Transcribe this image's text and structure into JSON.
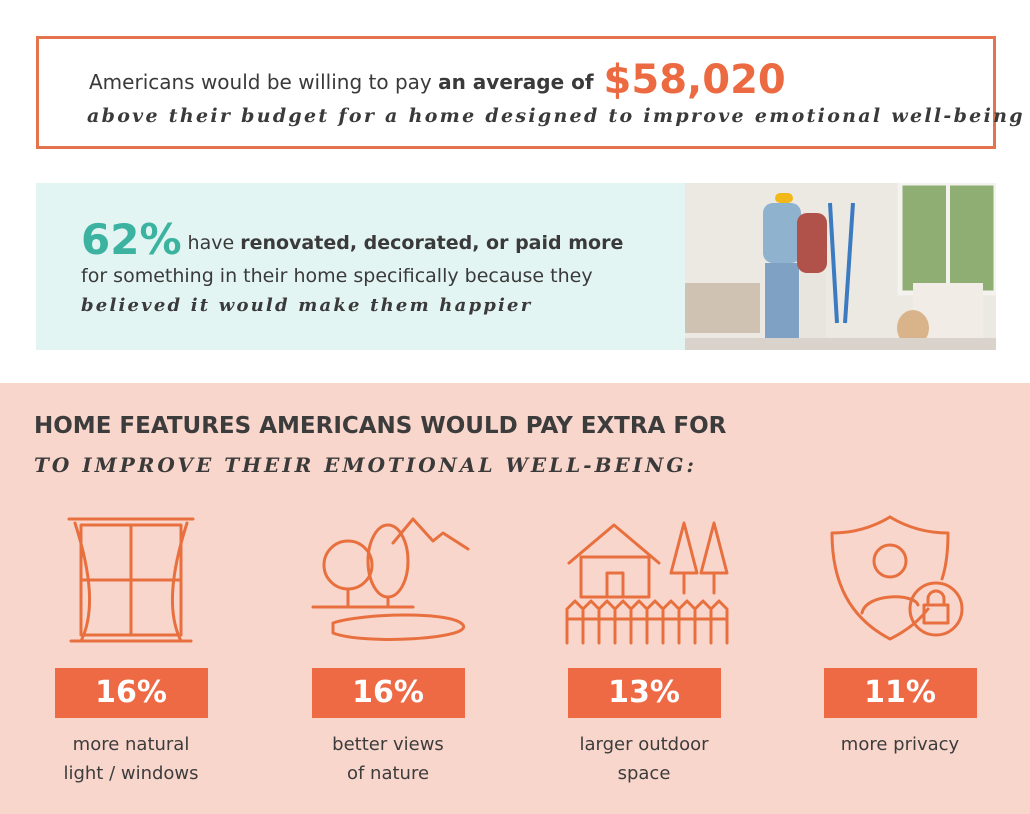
{
  "banner": {
    "lead": "Americans would be willing to pay",
    "emphasis": "an average of",
    "amount": "$58,020",
    "tagline": "above their budget for a home designed to improve emotional well-being"
  },
  "stat": {
    "percent": "62%",
    "text_1": "have",
    "emphasis": "renovated, decorated, or paid more",
    "text_2": "for something in their home specifically because they",
    "tagline": "believed it would make them happier"
  },
  "features": {
    "title": "HOME FEATURES AMERICANS WOULD PAY EXTRA FOR",
    "subtitle": "TO IMPROVE THEIR EMOTIONAL WELL-BEING:",
    "items": [
      {
        "percent": "16%",
        "label_lines": [
          "more natural",
          "light / windows"
        ]
      },
      {
        "percent": "16%",
        "label_lines": [
          "better views",
          "of nature"
        ]
      },
      {
        "percent": "13%",
        "label_lines": [
          "larger outdoor",
          "space"
        ]
      },
      {
        "percent": "11%",
        "label_lines": [
          "more privacy"
        ]
      }
    ]
  }
}
